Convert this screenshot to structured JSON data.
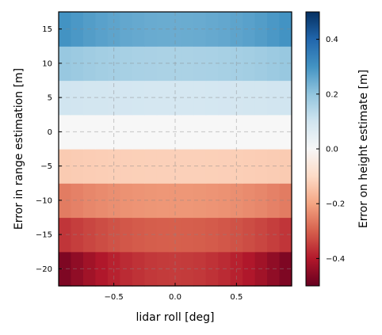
{
  "chart_data": {
    "type": "heatmap",
    "title": "",
    "xlabel": "lidar roll [deg]",
    "ylabel": "Error in range estimation [m]",
    "xlim": [
      -0.95,
      0.95
    ],
    "ylim": [
      -22.5,
      17.5
    ],
    "x_ticks": [
      -0.5,
      0.0,
      0.5
    ],
    "x_tick_labels": [
      "−0.5",
      "0.0",
      "0.5"
    ],
    "y_ticks": [
      -20,
      -15,
      -10,
      -5,
      0,
      5,
      10,
      15
    ],
    "y_tick_labels": [
      "−20",
      "−15",
      "−10",
      "−5",
      "0",
      "5",
      "10",
      "15"
    ],
    "x_centers": [
      -0.9,
      -0.8,
      -0.7,
      -0.6,
      -0.5,
      -0.4,
      -0.3,
      -0.2,
      -0.1,
      0.0,
      0.1,
      0.2,
      0.3,
      0.4,
      0.5,
      0.6,
      0.7,
      0.8,
      0.9
    ],
    "y_centers": [
      -20,
      -15,
      -10,
      -5,
      0,
      5,
      10,
      15
    ],
    "row_center_values": [
      -0.35,
      -0.3,
      -0.22,
      -0.12,
      0.0,
      0.09,
      0.16,
      0.25
    ],
    "row_edge_values": [
      -0.47,
      -0.36,
      -0.26,
      -0.13,
      0.0,
      0.1,
      0.19,
      0.3
    ],
    "colorbar": {
      "label": "Error on height estimate [m]",
      "colormap": "RdBu",
      "range": [
        -0.5,
        0.5
      ],
      "ticks": [
        -0.4,
        -0.2,
        0.0,
        0.2,
        0.4
      ],
      "tick_labels": [
        "−0.4",
        "−0.2",
        "0.0",
        "0.2",
        "0.4"
      ]
    },
    "grid": true,
    "grid_style": "dashed"
  }
}
